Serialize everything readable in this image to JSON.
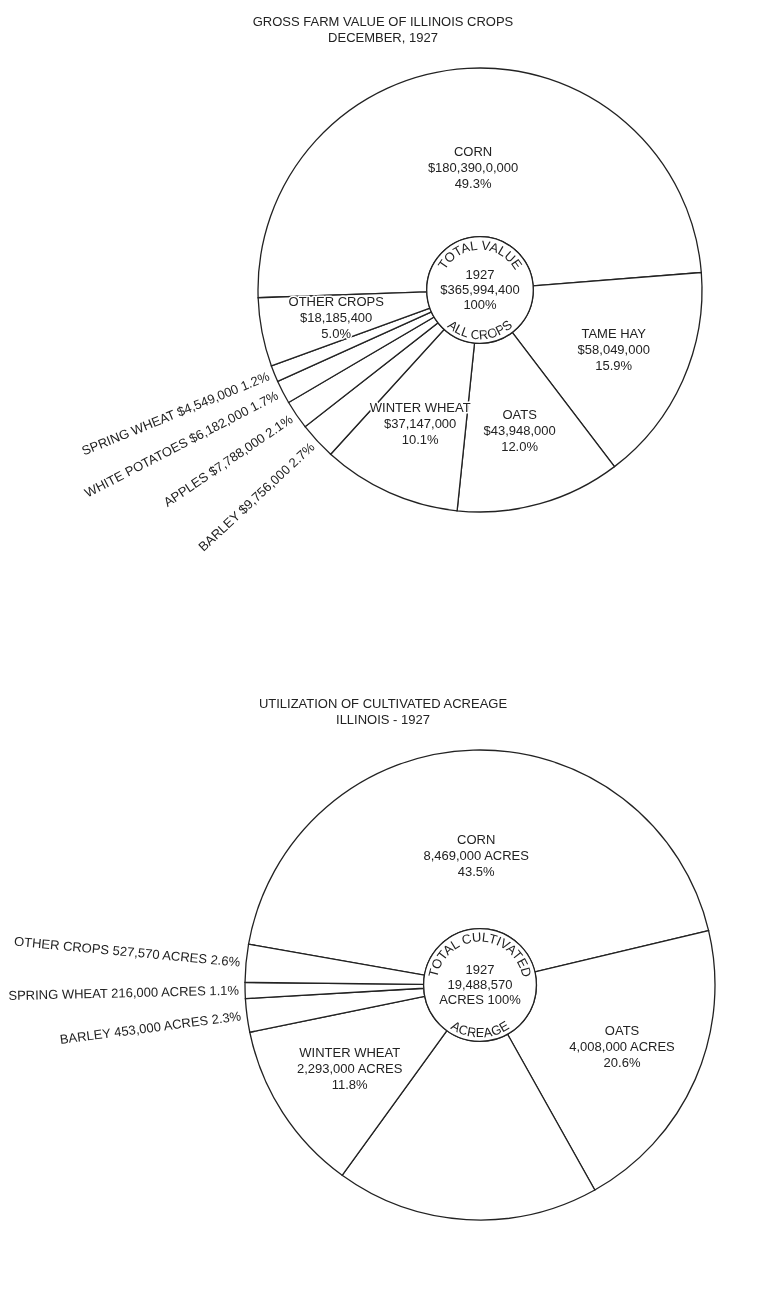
{
  "chart_data": [
    {
      "type": "donut",
      "title": "GROSS FARM VALUE OF ILLINOIS CROPS",
      "subtitle": "DECEMBER, 1927",
      "categories": [
        "CORN",
        "TAME HAY",
        "OATS",
        "WINTER WHEAT",
        "BARLEY",
        "APPLES",
        "WHITE POTATOES",
        "SPRING WHEAT",
        "OTHER CROPS"
      ],
      "values": [
        49.3,
        15.9,
        12.0,
        10.1,
        2.7,
        2.1,
        1.7,
        1.2,
        5.0
      ],
      "value_labels": [
        "$180,390,0,000 49.3%",
        "$58,049,000 15.9%",
        "$43,948,000 12.0%",
        "$37,147,000 10.1%",
        "$9,756,000 2.7%",
        "$7,788,000 2.1%",
        "$6,182,000 1.7%",
        "$4,549,000 1.2%",
        "$18,185,400 5.0%"
      ],
      "colors": [
        "#ffffff",
        "#ffffff",
        "#ffffff",
        "#ffffff",
        "#ffffff",
        "#ffffff",
        "#ffffff",
        "#ffffff",
        "#ffffff"
      ],
      "annotations": [
        "TOTAL VALUE",
        "ALL CROPS",
        "1927",
        "$365,994,400",
        "100%"
      ]
    },
    {
      "type": "donut",
      "title": "UTILIZATION OF CULTIVATED ACREAGE",
      "subtitle": "ILLINOIS - 1927",
      "categories": [
        "CORN",
        "OATS",
        null,
        "WINTER WHEAT",
        "BARLEY",
        "SPRING WHEAT",
        "OTHER CROPS"
      ],
      "values": [
        43.5,
        20.6,
        18.1,
        11.8,
        2.3,
        1.1,
        2.6
      ],
      "value_labels": [
        "8,469,000 ACRES 43.5%",
        "4,008,000 ACRES 20.6%",
        null,
        "2,293,000 ACRES 11.8%",
        "453,000 ACRES 2.3%",
        "216,000 ACRES 1.1%",
        "527,570 ACRES 2.6%"
      ],
      "colors": [
        "#ffffff",
        "#ffffff",
        "#ffffff",
        "#ffffff",
        "#ffffff",
        "#ffffff",
        "#ffffff"
      ],
      "annotations": [
        "TOTAL CULTIVATED",
        "ACREAGE",
        "1927",
        "19,488,570",
        "ACRES 100%"
      ]
    }
  ]
}
